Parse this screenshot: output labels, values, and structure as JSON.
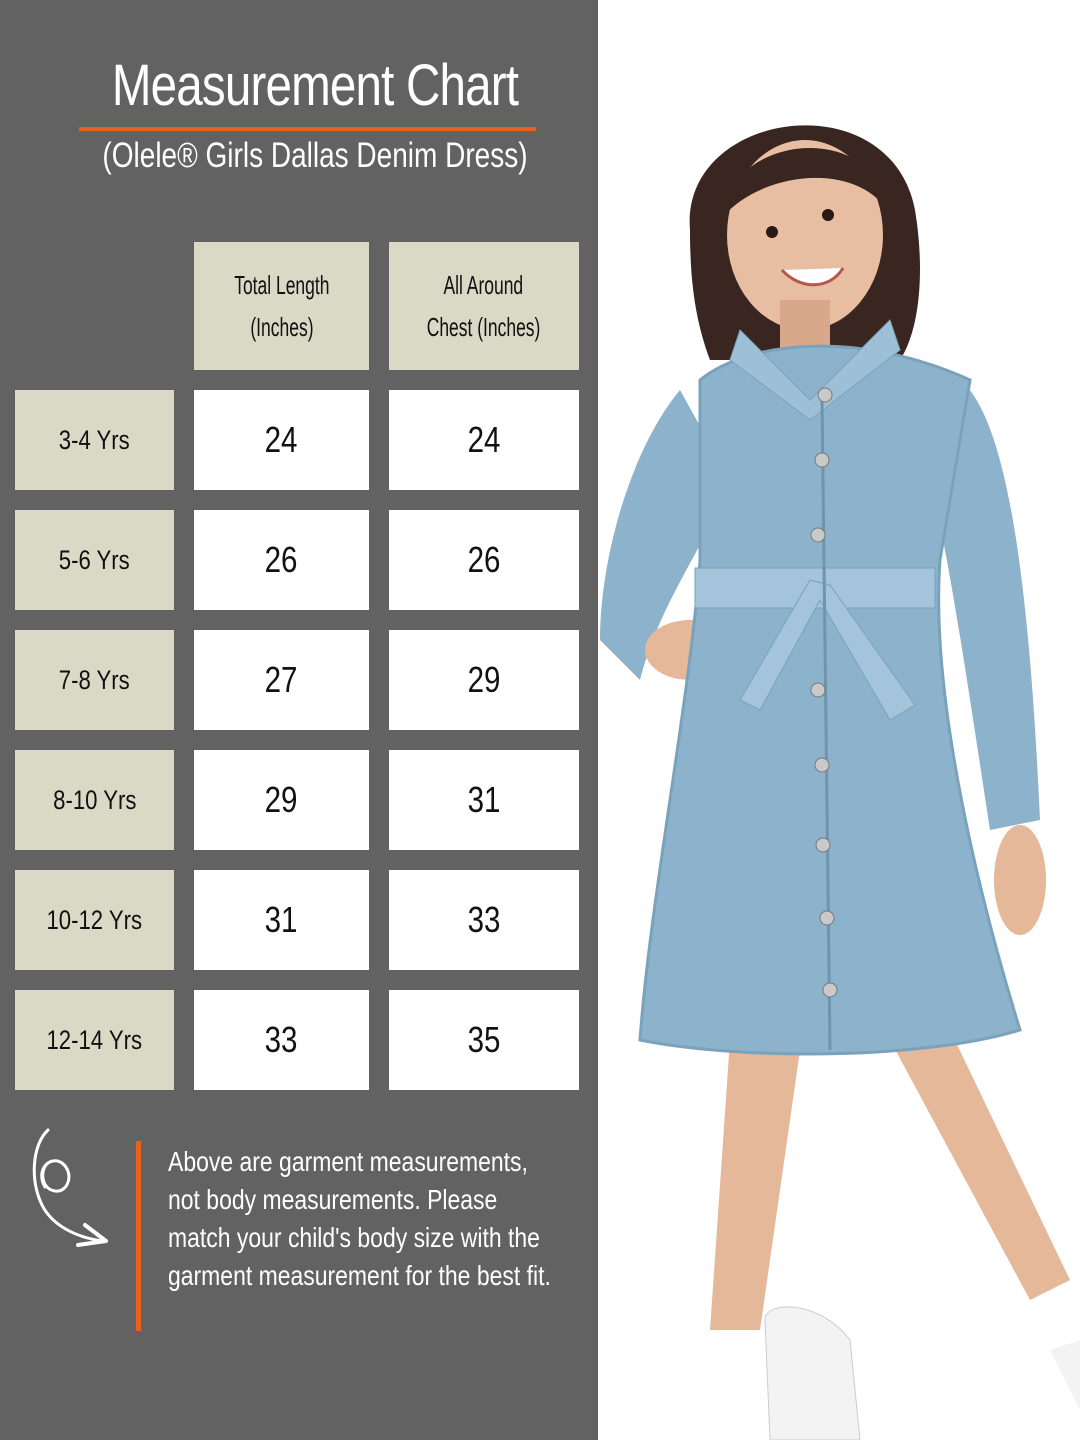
{
  "header": {
    "title": "Measurement Chart",
    "subtitle": "(Olele® Girls Dallas Denim Dress)"
  },
  "table": {
    "columns": [
      {
        "line1": "Total Length",
        "line2": "(Inches)"
      },
      {
        "line1": "All Around",
        "line2": "Chest (Inches)"
      }
    ],
    "rows": [
      {
        "size": "3-4 Yrs",
        "length": "24",
        "chest": "24"
      },
      {
        "size": "5-6 Yrs",
        "length": "26",
        "chest": "26"
      },
      {
        "size": "7-8 Yrs",
        "length": "27",
        "chest": "29"
      },
      {
        "size": "8-10 Yrs",
        "length": "29",
        "chest": "31"
      },
      {
        "size": "10-12 Yrs",
        "length": "31",
        "chest": "33"
      },
      {
        "size": "12-14 Yrs",
        "length": "33",
        "chest": "35"
      }
    ]
  },
  "note": {
    "icon": "curly-arrow-icon",
    "text": "Above are garment measurements, not body measurements. Please match your child's body size with the garment measurement for the best fit."
  },
  "colors": {
    "panel": "#626262",
    "accent": "#e8621c",
    "header_cell": "#d9d9c6",
    "denim": "#8db3cc"
  }
}
